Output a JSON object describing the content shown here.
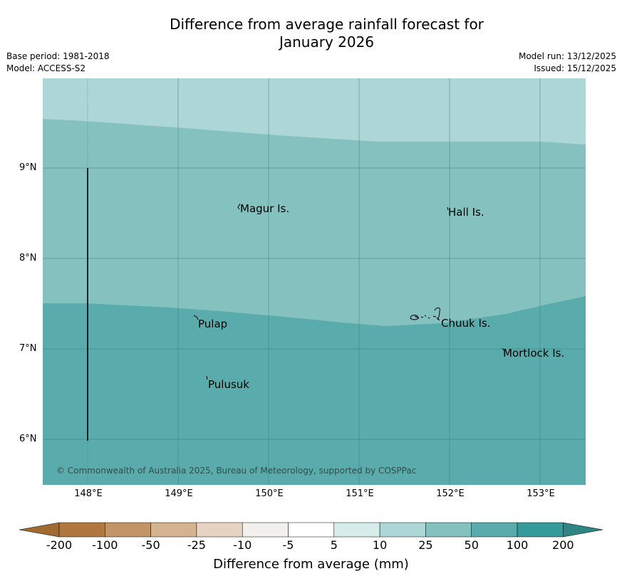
{
  "title": {
    "line1": "Difference from average rainfall forecast for",
    "line2": "January 2026"
  },
  "meta": {
    "base_period": "Base period: 1981-2018",
    "model": "Model: ACCESS-S2",
    "model_run": "Model run: 13/12/2025",
    "issued": "Issued: 15/12/2025"
  },
  "map": {
    "y_ticks": [
      "9°N",
      "8°N",
      "7°N",
      "6°N"
    ],
    "x_ticks": [
      "148°E",
      "149°E",
      "150°E",
      "151°E",
      "152°E",
      "153°E"
    ],
    "places": {
      "magur": "Magur Is.",
      "hall": "Hall Is.",
      "pulap": "Pulap",
      "chuuk": "Chuuk Is.",
      "mortlock": "Mortlock Is.",
      "pulusuk": "Pulusuk"
    },
    "copyright": "© Commonwealth of Australia 2025, Bureau of Meteorology, supported by COSPPac",
    "colors": {
      "band_10_25": "#add6d6",
      "band_25_50": "#85c1bf",
      "band_50_100": "#5aabab",
      "gridline": "#3f7d7d"
    }
  },
  "colorbar": {
    "title": "Difference from average (mm)",
    "labels": [
      "-200",
      "-100",
      "-50",
      "-25",
      "-10",
      "-5",
      "5",
      "10",
      "25",
      "50",
      "100",
      "200"
    ],
    "colors": {
      "under": "#a06a30",
      "c1": "#b07840",
      "c2": "#c29468",
      "c3": "#d3b390",
      "c4": "#e6d3c2",
      "c5": "#f2f0ec",
      "c6": "#ffffff",
      "c7": "#d6ecea",
      "c8": "#add6d6",
      "c9": "#85c1bf",
      "c10": "#5aabab",
      "c11": "#359a99",
      "over": "#2e8584"
    }
  }
}
